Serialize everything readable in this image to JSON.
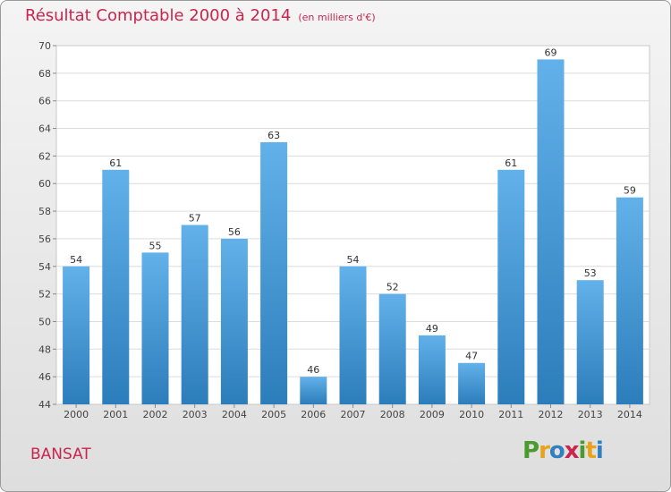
{
  "header": {
    "title": "Résultat Comptable 2000 à 2014",
    "unit": "(en milliers d'€)"
  },
  "footer": {
    "commune": "BANSAT",
    "logo_text": "Proxiti"
  },
  "colors": {
    "title": "#c8254f",
    "bar_light": "#62b1ea",
    "bar_dark": "#2c7dbb",
    "plot_bg": "#ffffff"
  },
  "chart_data": {
    "type": "bar",
    "categories": [
      "2000",
      "2001",
      "2002",
      "2003",
      "2004",
      "2005",
      "2006",
      "2007",
      "2008",
      "2009",
      "2010",
      "2011",
      "2012",
      "2013",
      "2014"
    ],
    "values": [
      54,
      61,
      55,
      57,
      56,
      63,
      46,
      54,
      52,
      49,
      47,
      61,
      69,
      53,
      59
    ],
    "ylim": [
      44,
      70
    ],
    "yticks": [
      44,
      46,
      48,
      50,
      52,
      54,
      56,
      58,
      60,
      62,
      64,
      66,
      68,
      70
    ],
    "grid": true,
    "data_labels": true
  }
}
